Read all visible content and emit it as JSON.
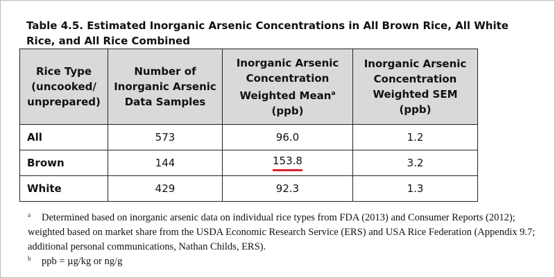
{
  "title": "Table 4.5. Estimated Inorganic Arsenic Concentrations in All Brown Rice, All White Rice, and All Rice Combined",
  "table": {
    "header": [
      {
        "lines": [
          "Rice Type",
          "(uncooked/",
          "unprepared)"
        ]
      },
      {
        "lines": [
          "Number of",
          "Inorganic Arsenic",
          "Data Samples"
        ]
      },
      {
        "lines": [
          "Inorganic Arsenic",
          "Concentration",
          "Weighted Mean",
          "(ppb)"
        ],
        "sup": "a"
      },
      {
        "lines": [
          "Inorganic Arsenic",
          "Concentration",
          "Weighted SEM",
          "(ppb)"
        ]
      }
    ],
    "rows": [
      [
        "All",
        "573",
        "96.0",
        "1.2"
      ],
      [
        "Brown",
        "144",
        "153.8",
        "3.2"
      ],
      [
        "White",
        "429",
        "92.3",
        "1.3"
      ]
    ]
  },
  "footnotes": [
    {
      "marker": "a",
      "text": "Determined based on inorganic arsenic data on individual rice types from FDA (2013) and Consumer Reports (2012); weighted based on market share from the USDA Economic Research Service (ERS) and USA Rice Federation (Appendix 9.7; additional personal communications, Nathan Childs, ERS)."
    },
    {
      "marker": "b",
      "text": "ppb = µg/kg or ng/g"
    }
  ]
}
